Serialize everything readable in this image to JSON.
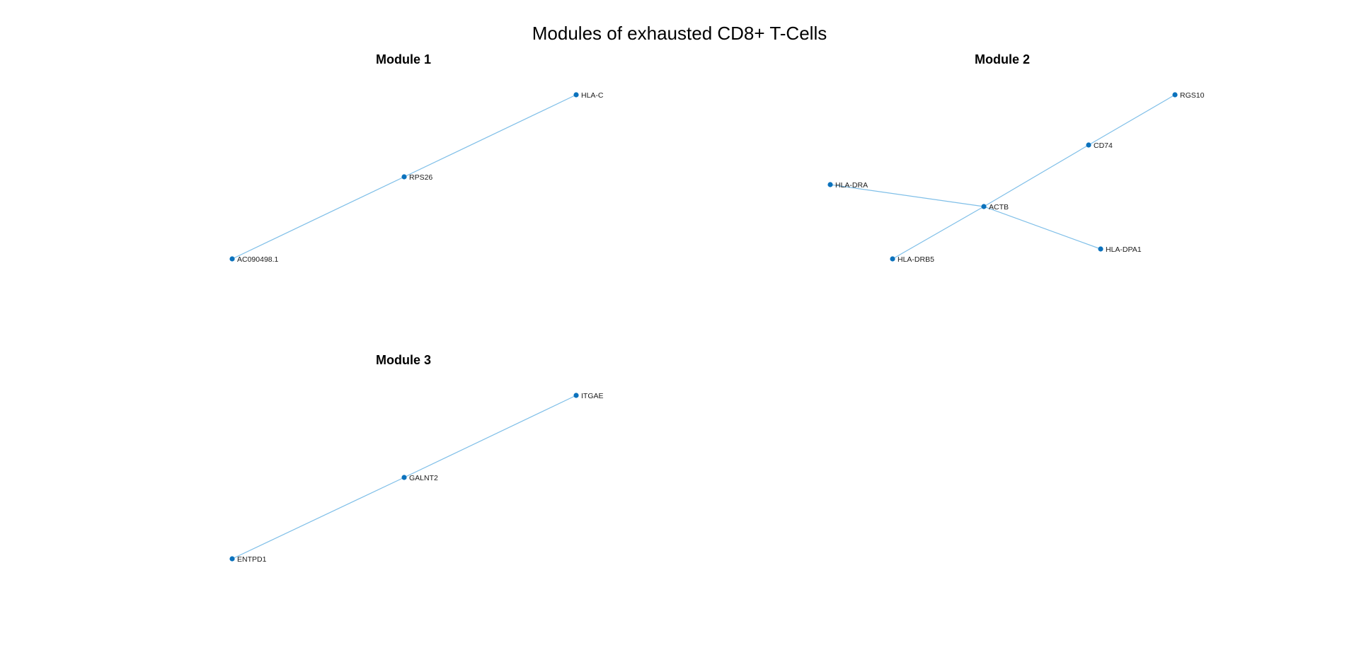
{
  "figure": {
    "title": "Modules of exhausted CD8+ T-Cells"
  },
  "colors": {
    "node": "#0b72bd",
    "edge": "#7fbfe8",
    "text": "#000000"
  },
  "modules": [
    {
      "id": "module-1",
      "title": "Module 1",
      "nodes": [
        "HLA-C",
        "RPS26",
        "AC090498.1"
      ],
      "edges": [
        [
          "HLA-C",
          "RPS26"
        ],
        [
          "RPS26",
          "AC090498.1"
        ]
      ]
    },
    {
      "id": "module-2",
      "title": "Module 2",
      "nodes": [
        "RGS10",
        "CD74",
        "HLA-DRA",
        "ACTB",
        "HLA-DPA1",
        "HLA-DRB5"
      ],
      "edges": [
        [
          "RGS10",
          "CD74"
        ],
        [
          "CD74",
          "ACTB"
        ],
        [
          "HLA-DRA",
          "ACTB"
        ],
        [
          "ACTB",
          "HLA-DPA1"
        ],
        [
          "ACTB",
          "HLA-DRB5"
        ]
      ]
    },
    {
      "id": "module-3",
      "title": "Module 3",
      "nodes": [
        "ITGAE",
        "GALNT2",
        "ENTPD1"
      ],
      "edges": [
        [
          "ITGAE",
          "GALNT2"
        ],
        [
          "GALNT2",
          "ENTPD1"
        ]
      ]
    }
  ]
}
